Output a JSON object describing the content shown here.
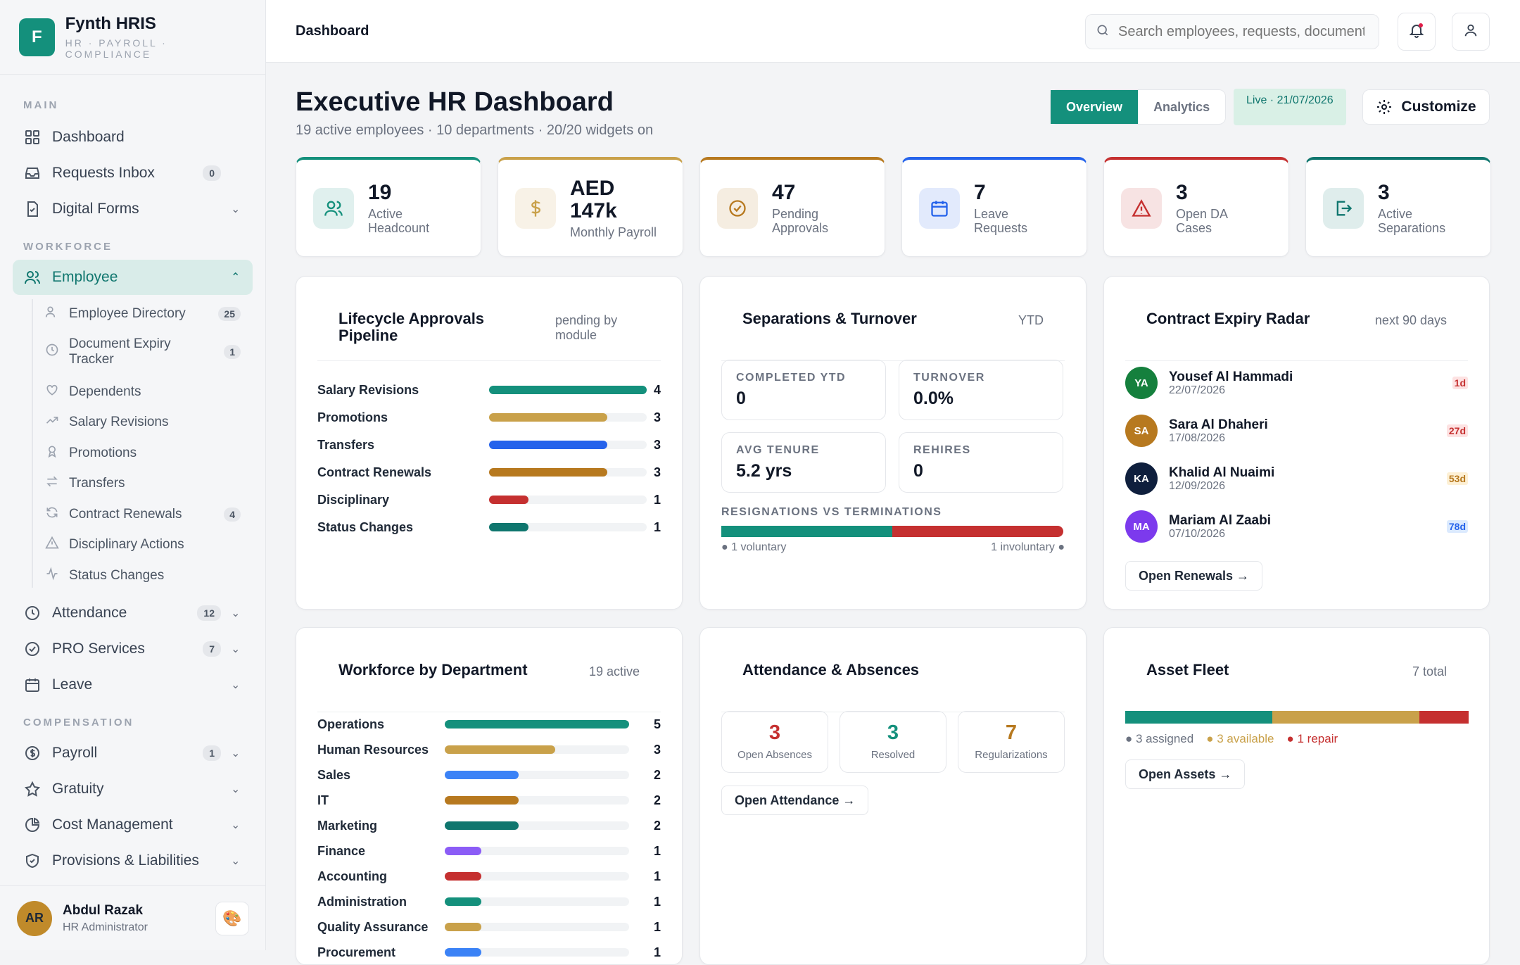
{
  "brand": {
    "initial": "F",
    "name": "Fynth HRIS",
    "tagline": "HR · PAYROLL · COMPLIANCE"
  },
  "sidebar": {
    "sections": {
      "main": "MAIN",
      "workforce": "WORKFORCE",
      "compensation": "COMPENSATION"
    },
    "items": {
      "dashboard": {
        "label": "Dashboard"
      },
      "requests": {
        "label": "Requests Inbox",
        "badge": "0"
      },
      "forms": {
        "label": "Digital Forms"
      },
      "employee": {
        "label": "Employee"
      },
      "attendance": {
        "label": "Attendance",
        "badge": "12"
      },
      "pro": {
        "label": "PRO Services",
        "badge": "7"
      },
      "leave": {
        "label": "Leave"
      },
      "payroll": {
        "label": "Payroll",
        "badge": "1"
      },
      "gratuity": {
        "label": "Gratuity"
      },
      "cost": {
        "label": "Cost Management"
      },
      "provisions": {
        "label": "Provisions & Liabilities"
      }
    },
    "sub": {
      "directory": {
        "label": "Employee Directory",
        "badge": "25"
      },
      "doc_expiry": {
        "label": "Document Expiry Tracker",
        "badge": "1"
      },
      "dependents": {
        "label": "Dependents"
      },
      "salary": {
        "label": "Salary Revisions"
      },
      "promotions": {
        "label": "Promotions"
      },
      "transfers": {
        "label": "Transfers"
      },
      "renewals": {
        "label": "Contract Renewals",
        "badge": "4"
      },
      "disciplinary": {
        "label": "Disciplinary Actions"
      },
      "status": {
        "label": "Status Changes"
      }
    }
  },
  "user": {
    "initials": "AR",
    "name": "Abdul Razak",
    "role": "HR Administrator"
  },
  "topbar": {
    "breadcrumb": "Dashboard",
    "search_placeholder": "Search employees, requests, documents..."
  },
  "header": {
    "title": "Executive HR Dashboard",
    "subtitle": "19 active employees · 10 departments · 20/20 widgets on",
    "tab_overview": "Overview",
    "tab_analytics": "Analytics",
    "live": "Live · 21/07/2026",
    "customize": "Customize"
  },
  "kpis": [
    {
      "value": "19",
      "label": "Active Headcount",
      "color": "#14907c"
    },
    {
      "value": "AED 147k",
      "label": "Monthly Payroll",
      "color": "#c9a14a"
    },
    {
      "value": "47",
      "label": "Pending Approvals",
      "color": "#b7791f"
    },
    {
      "value": "7",
      "label": "Leave Requests",
      "color": "#2563eb"
    },
    {
      "value": "3",
      "label": "Open DA Cases",
      "color": "#c53030"
    },
    {
      "value": "3",
      "label": "Active Separations",
      "color": "#0f766e"
    }
  ],
  "lifecycle": {
    "title": "Lifecycle Approvals Pipeline",
    "meta": "pending by module",
    "max": 4,
    "rows": [
      {
        "label": "Salary Revisions",
        "value": 4,
        "color": "#14907c"
      },
      {
        "label": "Promotions",
        "value": 3,
        "color": "#c9a14a"
      },
      {
        "label": "Transfers",
        "value": 3,
        "color": "#2563eb"
      },
      {
        "label": "Contract Renewals",
        "value": 3,
        "color": "#b7791f"
      },
      {
        "label": "Disciplinary",
        "value": 1,
        "color": "#c53030"
      },
      {
        "label": "Status Changes",
        "value": 1,
        "color": "#0f766e"
      }
    ]
  },
  "separations": {
    "title": "Separations & Turnover",
    "meta": "YTD",
    "stats": {
      "completed": {
        "label": "COMPLETED YTD",
        "value": "0"
      },
      "turnover": {
        "label": "TURNOVER",
        "value": "0.0%"
      },
      "tenure": {
        "label": "AVG TENURE",
        "value": "5.2 yrs"
      },
      "rehires": {
        "label": "REHIRES",
        "value": "0"
      }
    },
    "split_label": "RESIGNATIONS VS TERMINATIONS",
    "voluntary": "● 1 voluntary",
    "involuntary": "1 involuntary ●",
    "voluntary_share": 0.5
  },
  "contracts": {
    "title": "Contract Expiry Radar",
    "meta": "next 90 days",
    "people": [
      {
        "initials": "YA",
        "name": "Yousef Al Hammadi",
        "date": "22/07/2026",
        "days": "1d",
        "avatar": "#15803d",
        "tag_bg": "#fde2e2",
        "tag_fg": "#c53030"
      },
      {
        "initials": "SA",
        "name": "Sara Al Dhaheri",
        "date": "17/08/2026",
        "days": "27d",
        "avatar": "#b7791f",
        "tag_bg": "#fde2e2",
        "tag_fg": "#c53030"
      },
      {
        "initials": "KA",
        "name": "Khalid Al Nuaimi",
        "date": "12/09/2026",
        "days": "53d",
        "avatar": "#0f1f3d",
        "tag_bg": "#fdf0d5",
        "tag_fg": "#b7791f"
      },
      {
        "initials": "MA",
        "name": "Mariam Al Zaabi",
        "date": "07/10/2026",
        "days": "78d",
        "avatar": "#7c3aed",
        "tag_bg": "#dbeafe",
        "tag_fg": "#2563eb"
      }
    ],
    "button": "Open Renewals →"
  },
  "workforce": {
    "title": "Workforce by Department",
    "meta": "19 active",
    "max": 5,
    "rows": [
      {
        "label": "Operations",
        "value": 5,
        "color": "#14907c"
      },
      {
        "label": "Human Resources",
        "value": 3,
        "color": "#c9a14a"
      },
      {
        "label": "Sales",
        "value": 2,
        "color": "#3b82f6"
      },
      {
        "label": "IT",
        "value": 2,
        "color": "#b7791f"
      },
      {
        "label": "Marketing",
        "value": 2,
        "color": "#0f766e"
      },
      {
        "label": "Finance",
        "value": 1,
        "color": "#8b5cf6"
      },
      {
        "label": "Accounting",
        "value": 1,
        "color": "#c53030"
      },
      {
        "label": "Administration",
        "value": 1,
        "color": "#14907c"
      },
      {
        "label": "Quality Assurance",
        "value": 1,
        "color": "#c9a14a"
      },
      {
        "label": "Procurement",
        "value": 1,
        "color": "#3b82f6"
      }
    ]
  },
  "attendance": {
    "title": "Attendance & Absences",
    "boxes": [
      {
        "value": "3",
        "label": "Open Absences",
        "color": "#c53030"
      },
      {
        "value": "3",
        "label": "Resolved",
        "color": "#14907c"
      },
      {
        "value": "7",
        "label": "Regularizations",
        "color": "#b7791f"
      }
    ],
    "button": "Open Attendance →"
  },
  "assets": {
    "title": "Asset Fleet",
    "meta": "7 total",
    "segments": [
      {
        "value": 3,
        "color": "#14907c"
      },
      {
        "value": 3,
        "color": "#c9a14a"
      },
      {
        "value": 1,
        "color": "#c53030"
      }
    ],
    "legend": {
      "assigned": "● 3 assigned",
      "available": "● 3 available",
      "repair": "● 1 repair"
    },
    "button": "Open Assets →"
  }
}
